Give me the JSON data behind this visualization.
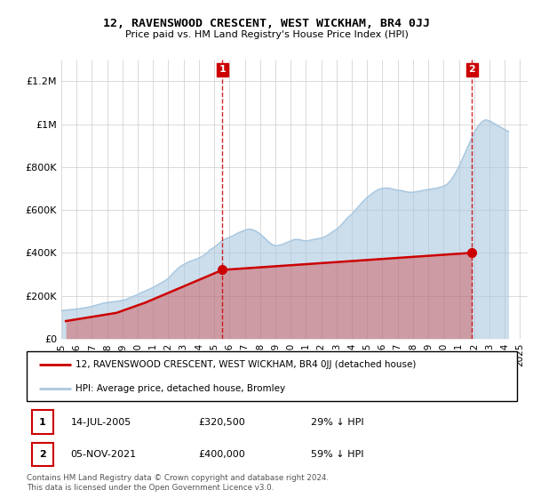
{
  "title": "12, RAVENSWOOD CRESCENT, WEST WICKHAM, BR4 0JJ",
  "subtitle": "Price paid vs. HM Land Registry's House Price Index (HPI)",
  "background_color": "#ffffff",
  "grid_color": "#cccccc",
  "hpi_color": "#aac8e0",
  "price_color": "#cc0000",
  "annotation_box_color": "#cc0000",
  "ylim": [
    0,
    1300000
  ],
  "yticks": [
    0,
    200000,
    400000,
    600000,
    800000,
    1000000,
    1200000
  ],
  "ytick_labels": [
    "£0",
    "£200K",
    "£400K",
    "£600K",
    "£800K",
    "£1M",
    "£1.2M"
  ],
  "legend_label_price": "12, RAVENSWOOD CRESCENT, WEST WICKHAM, BR4 0JJ (detached house)",
  "legend_label_hpi": "HPI: Average price, detached house, Bromley",
  "footer_text": "Contains HM Land Registry data © Crown copyright and database right 2024.\nThis data is licensed under the Open Government Licence v3.0.",
  "annotation1": {
    "label": "1",
    "date": "14-JUL-2005",
    "price": "£320,500",
    "detail": "29% ↓ HPI",
    "x_year": 2005.54
  },
  "annotation2": {
    "label": "2",
    "date": "05-NOV-2021",
    "price": "£400,000",
    "detail": "59% ↓ HPI",
    "x_year": 2021.85
  },
  "hpi_years": [
    1995.0,
    1995.25,
    1995.5,
    1995.75,
    1996.0,
    1996.25,
    1996.5,
    1996.75,
    1997.0,
    1997.25,
    1997.5,
    1997.75,
    1998.0,
    1998.25,
    1998.5,
    1998.75,
    1999.0,
    1999.25,
    1999.5,
    1999.75,
    2000.0,
    2000.25,
    2000.5,
    2000.75,
    2001.0,
    2001.25,
    2001.5,
    2001.75,
    2002.0,
    2002.25,
    2002.5,
    2002.75,
    2003.0,
    2003.25,
    2003.5,
    2003.75,
    2004.0,
    2004.25,
    2004.5,
    2004.75,
    2005.0,
    2005.25,
    2005.5,
    2005.75,
    2006.0,
    2006.25,
    2006.5,
    2006.75,
    2007.0,
    2007.25,
    2007.5,
    2007.75,
    2008.0,
    2008.25,
    2008.5,
    2008.75,
    2009.0,
    2009.25,
    2009.5,
    2009.75,
    2010.0,
    2010.25,
    2010.5,
    2010.75,
    2011.0,
    2011.25,
    2011.5,
    2011.75,
    2012.0,
    2012.25,
    2012.5,
    2012.75,
    2013.0,
    2013.25,
    2013.5,
    2013.75,
    2014.0,
    2014.25,
    2014.5,
    2014.75,
    2015.0,
    2015.25,
    2015.5,
    2015.75,
    2016.0,
    2016.25,
    2016.5,
    2016.75,
    2017.0,
    2017.25,
    2017.5,
    2017.75,
    2018.0,
    2018.25,
    2018.5,
    2018.75,
    2019.0,
    2019.25,
    2019.5,
    2019.75,
    2020.0,
    2020.25,
    2020.5,
    2020.75,
    2021.0,
    2021.25,
    2021.5,
    2021.75,
    2022.0,
    2022.25,
    2022.5,
    2022.75,
    2023.0,
    2023.25,
    2023.5,
    2023.75,
    2024.0,
    2024.25
  ],
  "hpi_values": [
    130000,
    132000,
    134000,
    136000,
    138000,
    140000,
    143000,
    146000,
    150000,
    155000,
    160000,
    165000,
    168000,
    170000,
    172000,
    175000,
    178000,
    183000,
    190000,
    198000,
    205000,
    215000,
    222000,
    230000,
    238000,
    248000,
    258000,
    268000,
    280000,
    300000,
    318000,
    335000,
    345000,
    355000,
    362000,
    368000,
    375000,
    385000,
    398000,
    415000,
    425000,
    440000,
    455000,
    465000,
    472000,
    480000,
    490000,
    498000,
    505000,
    510000,
    508000,
    500000,
    488000,
    472000,
    455000,
    440000,
    432000,
    435000,
    440000,
    448000,
    455000,
    462000,
    462000,
    458000,
    455000,
    458000,
    462000,
    465000,
    468000,
    475000,
    485000,
    498000,
    510000,
    525000,
    545000,
    565000,
    580000,
    600000,
    620000,
    640000,
    658000,
    672000,
    685000,
    695000,
    700000,
    702000,
    700000,
    695000,
    692000,
    690000,
    685000,
    682000,
    682000,
    685000,
    688000,
    692000,
    695000,
    698000,
    700000,
    705000,
    710000,
    720000,
    740000,
    768000,
    800000,
    840000,
    880000,
    920000,
    960000,
    990000,
    1010000,
    1020000,
    1015000,
    1005000,
    995000,
    985000,
    975000,
    965000
  ],
  "price_years": [
    1995.3,
    1998.6,
    2000.5,
    2005.54,
    2021.85
  ],
  "price_values": [
    82000,
    120000,
    168000,
    320500,
    400000
  ],
  "sale1_x": 2005.54,
  "sale1_y": 320500,
  "sale2_x": 2021.85,
  "sale2_y": 400000,
  "vline1_x": 2005.54,
  "vline2_x": 2021.85,
  "xlim": [
    1995,
    2025.5
  ],
  "xtick_years": [
    1995,
    1996,
    1997,
    1998,
    1999,
    2000,
    2001,
    2002,
    2003,
    2004,
    2005,
    2006,
    2007,
    2008,
    2009,
    2010,
    2011,
    2012,
    2013,
    2014,
    2015,
    2016,
    2017,
    2018,
    2019,
    2020,
    2021,
    2022,
    2023,
    2024,
    2025
  ]
}
